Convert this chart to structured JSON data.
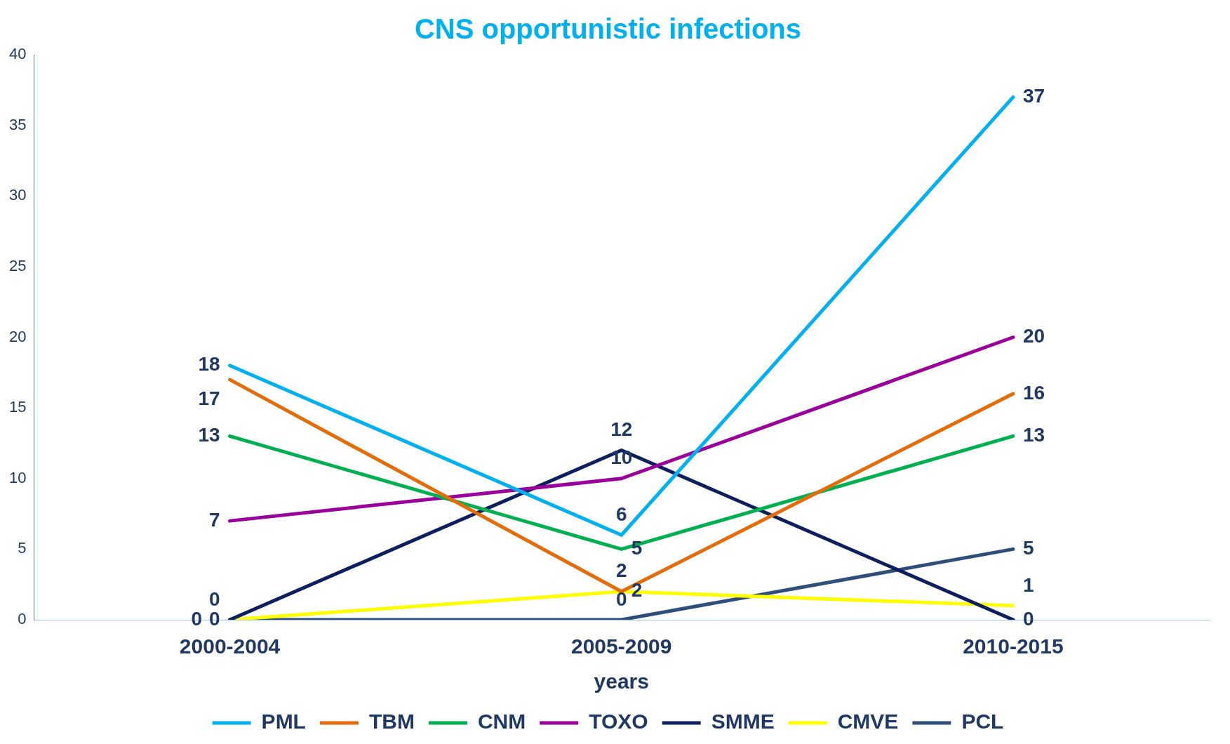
{
  "chart_data": {
    "type": "line",
    "title": "CNS opportunistic infections",
    "xlabel": "years",
    "categories": [
      "2000-2004",
      "2005-2009",
      "2010-2015"
    ],
    "series": [
      {
        "name": "PML",
        "color": "#00b0f0",
        "values": [
          18,
          6,
          37
        ]
      },
      {
        "name": "TBM",
        "color": "#e46c0a",
        "values": [
          17,
          2,
          16
        ]
      },
      {
        "name": "CNM",
        "color": "#00b050",
        "values": [
          13,
          5,
          13
        ]
      },
      {
        "name": "TOXO",
        "color": "#990099",
        "values": [
          7,
          10,
          20
        ]
      },
      {
        "name": "SMME",
        "color": "#0d1f5c",
        "values": [
          0,
          12,
          0
        ]
      },
      {
        "name": "CMVE",
        "color": "#ffff00",
        "values": [
          0,
          2,
          1
        ]
      },
      {
        "name": "PCL",
        "color": "#2f4f7a",
        "values": [
          0,
          0,
          5
        ]
      }
    ],
    "ylim": [
      0,
      40
    ],
    "yticks": [
      0,
      5,
      10,
      15,
      20,
      25,
      30,
      35,
      40
    ],
    "grid": false,
    "legend": "bottom",
    "marker": "none",
    "line_style": "solid",
    "data_labels": true
  }
}
